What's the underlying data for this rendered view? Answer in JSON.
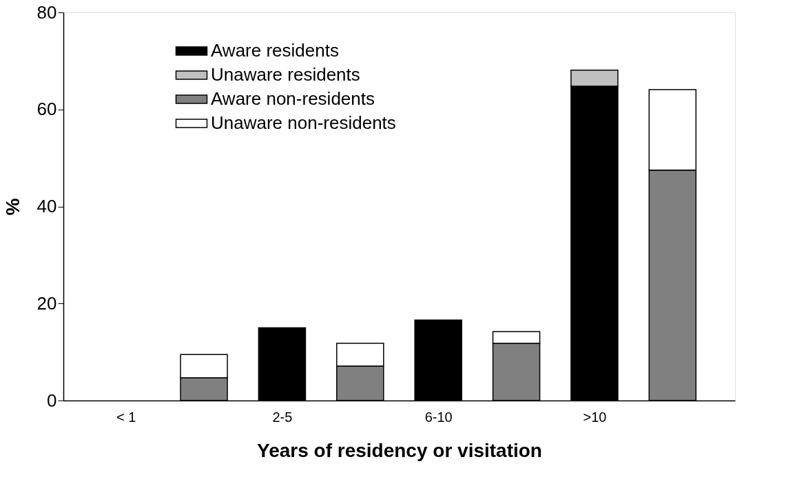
{
  "chart_data": {
    "type": "bar",
    "stacked": true,
    "xlabel": "Years of residency or visitation",
    "ylabel": "%",
    "categories": [
      "< 1",
      null,
      "2-5",
      null,
      "6-10",
      null,
      ">10",
      null
    ],
    "series": [
      {
        "name": "Aware residents",
        "color": "#000000",
        "values": [
          null,
          null,
          15.0,
          null,
          16.6,
          null,
          64.8,
          null
        ]
      },
      {
        "name": "Unaware residents",
        "color": "#c0c0c0",
        "values": [
          null,
          null,
          null,
          null,
          null,
          null,
          3.3,
          null
        ]
      },
      {
        "name": "Aware non-residents",
        "color": "#808080",
        "values": [
          null,
          4.7,
          null,
          7.1,
          null,
          11.8,
          null,
          47.5
        ]
      },
      {
        "name": "Unaware non-residents",
        "color": "#ffffff",
        "values": [
          null,
          4.8,
          null,
          4.7,
          null,
          2.4,
          null,
          16.6
        ]
      }
    ],
    "ylim": [
      0,
      80
    ],
    "yticks": [
      0,
      20,
      40,
      60,
      80
    ],
    "grid": false,
    "legend": "top left"
  }
}
